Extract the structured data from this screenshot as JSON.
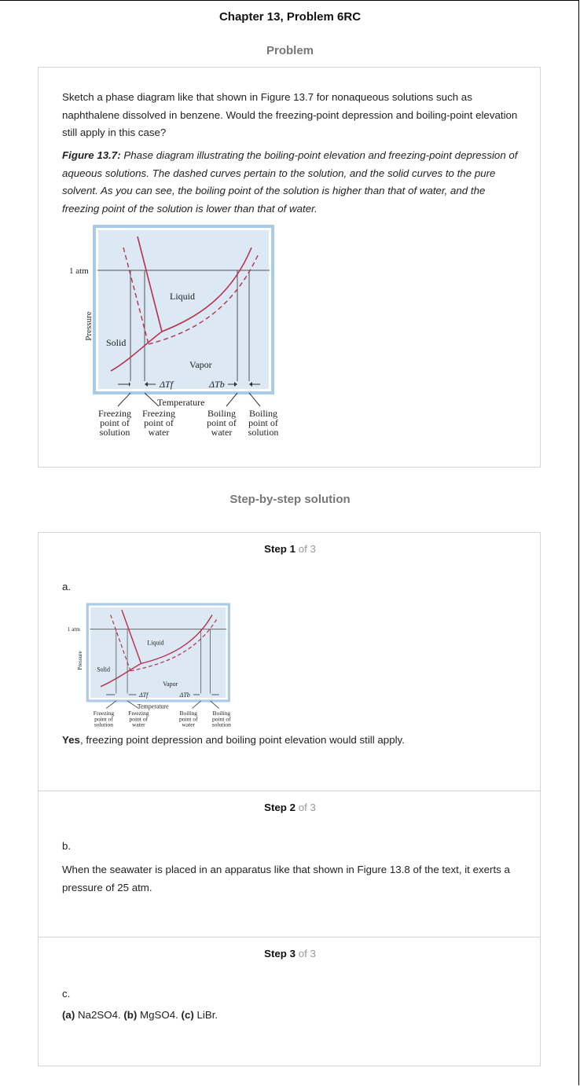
{
  "header": {
    "title": "Chapter 13, Problem 6RC",
    "problem_heading": "Problem",
    "solution_heading": "Step-by-step solution"
  },
  "problem": {
    "text": "Sketch a phase diagram like that shown in Figure 13.7 for nonaqueous solutions such as naphthalene dissolved in benzene. Would the freezing-point depression and boiling-point elevation still apply in this case?",
    "figure_label": "Figure 13.7:",
    "figure_caption": "Phase diagram illustrating the boiling-point elevation and freezing-point depression of aqueous solutions. The dashed curves pertain to the solution, and the solid curves to the pure solvent. As you can see, the boiling point of the solution is higher than that of water, and the freezing point of the solution is lower than that of water."
  },
  "diagram": {
    "pressure_label": "1 atm",
    "y_axis": "Pressure",
    "x_axis": "Temperature",
    "region_liquid": "Liquid",
    "region_solid": "Solid",
    "region_vapor": "Vapor",
    "delta_tf": "ΔTf",
    "delta_tb": "ΔTb",
    "fp_solution": [
      "Freezing",
      "point of",
      "solution"
    ],
    "fp_water": [
      "Freezing",
      "point of",
      "water"
    ],
    "bp_water": [
      "Boiling",
      "point of",
      "water"
    ],
    "bp_solution": [
      "Boiling",
      "point of",
      "solution"
    ],
    "colors": {
      "panel": "#dce8f4",
      "frame": "#a9cbe6",
      "curve": "#b8314f",
      "line": "#555555"
    }
  },
  "steps": [
    {
      "label_bold": "Step 1",
      "label_rest": " of 3",
      "part": "a.",
      "answer_bold": "Yes",
      "answer_rest": ", freezing point depression and boiling point elevation would still apply."
    },
    {
      "label_bold": "Step 2",
      "label_rest": " of 3",
      "part": "b.",
      "text": "When the seawater is placed in an apparatus like that shown in Figure 13.8 of the text, it exerts a pressure of 25 atm."
    },
    {
      "label_bold": "Step 3",
      "label_rest": " of 3",
      "part": "c.",
      "a_label": "(a)",
      "a_text": " Na2SO4. ",
      "b_label": "(b)",
      "b_text": " MgSO4. ",
      "c_label": "(c)",
      "c_text": " LiBr."
    }
  ]
}
